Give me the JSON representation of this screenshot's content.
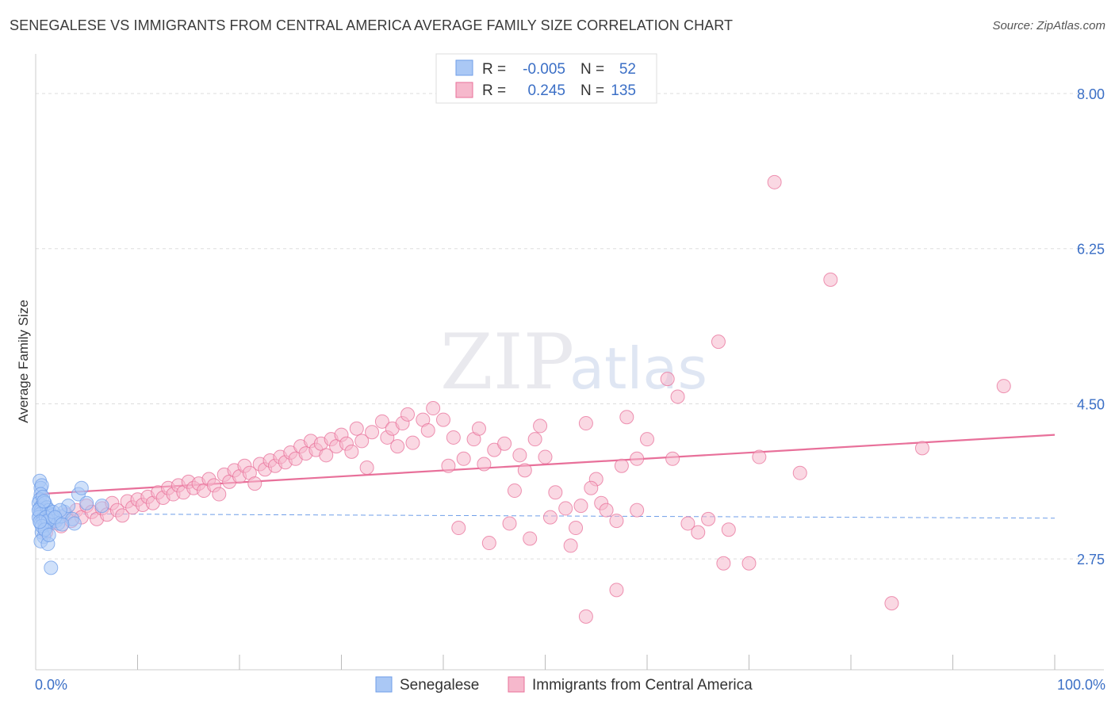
{
  "title": "SENEGALESE VS IMMIGRANTS FROM CENTRAL AMERICA AVERAGE FAMILY SIZE CORRELATION CHART",
  "source": "Source: ZipAtlas.com",
  "watermark": {
    "zip": "ZIP",
    "atlas": "atlas"
  },
  "colors": {
    "blue": "#6f9ee8",
    "blue_fill": "#aac8f5",
    "pink": "#e8709a",
    "pink_fill": "#f6b8cc",
    "axis_label": "#3b6fc6",
    "grid": "#dddddd"
  },
  "legend": {
    "rows": [
      {
        "r_label": "R =",
        "r_value": "-0.005",
        "n_label": "N =",
        "n_value": "52"
      },
      {
        "r_label": "R =",
        "r_value": "0.245",
        "n_label": "N =",
        "n_value": "135"
      }
    ]
  },
  "chart_data": {
    "type": "scatter",
    "title": "SENEGALESE VS IMMIGRANTS FROM CENTRAL AMERICA AVERAGE FAMILY SIZE CORRELATION CHART",
    "xlabel": "",
    "ylabel": "Average Family Size",
    "xlim": [
      0,
      100
    ],
    "ylim": [
      1.5,
      8.25
    ],
    "x_tick_labels": [
      "0.0%",
      "100.0%"
    ],
    "y_ticks": [
      2.75,
      4.5,
      6.25,
      8.0
    ],
    "y_tick_labels": [
      "2.75",
      "4.50",
      "6.25",
      "8.00"
    ],
    "grid": true,
    "legend_position": "top-center",
    "series": [
      {
        "name": "Senegalese",
        "color": "#6f9ee8",
        "trend": {
          "x0": 0,
          "y0": 3.26,
          "x1": 100,
          "y1": 3.21,
          "style": "dashed"
        },
        "points": [
          [
            0.4,
            3.63
          ],
          [
            0.5,
            3.55
          ],
          [
            0.6,
            3.58
          ],
          [
            0.5,
            3.48
          ],
          [
            0.4,
            3.42
          ],
          [
            0.3,
            3.38
          ],
          [
            0.6,
            3.35
          ],
          [
            0.4,
            3.32
          ],
          [
            0.5,
            3.29
          ],
          [
            0.6,
            3.27
          ],
          [
            0.4,
            3.25
          ],
          [
            0.3,
            3.22
          ],
          [
            0.7,
            3.2
          ],
          [
            0.8,
            3.18
          ],
          [
            0.5,
            3.15
          ],
          [
            0.9,
            3.12
          ],
          [
            1.0,
            3.1
          ],
          [
            0.6,
            3.05
          ],
          [
            0.8,
            3.0
          ],
          [
            0.5,
            2.95
          ],
          [
            1.2,
            2.92
          ],
          [
            1.5,
            2.65
          ],
          [
            0.7,
            3.45
          ],
          [
            0.9,
            3.38
          ],
          [
            1.1,
            3.33
          ],
          [
            1.3,
            3.3
          ],
          [
            1.4,
            3.26
          ],
          [
            1.6,
            3.24
          ],
          [
            1.8,
            3.2
          ],
          [
            2.0,
            3.18
          ],
          [
            2.2,
            3.15
          ],
          [
            2.5,
            3.23
          ],
          [
            2.8,
            3.28
          ],
          [
            3.2,
            3.35
          ],
          [
            3.6,
            3.2
          ],
          [
            3.8,
            3.15
          ],
          [
            4.2,
            3.48
          ],
          [
            4.5,
            3.55
          ],
          [
            0.3,
            3.3
          ],
          [
            0.8,
            3.4
          ],
          [
            1.0,
            3.22
          ],
          [
            1.2,
            3.18
          ],
          [
            0.6,
            3.12
          ],
          [
            1.7,
            3.28
          ],
          [
            2.4,
            3.3
          ],
          [
            0.9,
            3.08
          ],
          [
            1.3,
            3.02
          ],
          [
            0.4,
            3.17
          ],
          [
            1.9,
            3.22
          ],
          [
            2.6,
            3.14
          ],
          [
            5.0,
            3.38
          ],
          [
            6.5,
            3.35
          ]
        ]
      },
      {
        "name": "Immigrants from Central America",
        "color": "#e8709a",
        "trend": {
          "x0": 0,
          "y0": 3.48,
          "x1": 100,
          "y1": 4.15,
          "style": "solid"
        },
        "points": [
          [
            1.0,
            3.05
          ],
          [
            1.5,
            3.15
          ],
          [
            2.0,
            3.2
          ],
          [
            2.5,
            3.12
          ],
          [
            3.0,
            3.25
          ],
          [
            3.5,
            3.18
          ],
          [
            4.0,
            3.3
          ],
          [
            4.5,
            3.22
          ],
          [
            5.0,
            3.35
          ],
          [
            5.5,
            3.28
          ],
          [
            6.0,
            3.2
          ],
          [
            6.5,
            3.32
          ],
          [
            7.0,
            3.25
          ],
          [
            7.5,
            3.38
          ],
          [
            8.0,
            3.3
          ],
          [
            8.5,
            3.24
          ],
          [
            9.0,
            3.4
          ],
          [
            9.5,
            3.33
          ],
          [
            10.0,
            3.42
          ],
          [
            10.5,
            3.36
          ],
          [
            11.0,
            3.45
          ],
          [
            11.5,
            3.38
          ],
          [
            12.0,
            3.5
          ],
          [
            12.5,
            3.44
          ],
          [
            13.0,
            3.55
          ],
          [
            13.5,
            3.48
          ],
          [
            14.0,
            3.58
          ],
          [
            14.5,
            3.5
          ],
          [
            15.0,
            3.62
          ],
          [
            15.5,
            3.55
          ],
          [
            16.0,
            3.6
          ],
          [
            16.5,
            3.52
          ],
          [
            17.0,
            3.65
          ],
          [
            17.5,
            3.58
          ],
          [
            18.0,
            3.48
          ],
          [
            18.5,
            3.7
          ],
          [
            19.0,
            3.62
          ],
          [
            19.5,
            3.75
          ],
          [
            20.0,
            3.68
          ],
          [
            20.5,
            3.8
          ],
          [
            21.0,
            3.72
          ],
          [
            21.5,
            3.6
          ],
          [
            22.0,
            3.82
          ],
          [
            22.5,
            3.76
          ],
          [
            23.0,
            3.86
          ],
          [
            23.5,
            3.8
          ],
          [
            24.0,
            3.9
          ],
          [
            24.5,
            3.84
          ],
          [
            25.0,
            3.95
          ],
          [
            25.5,
            3.88
          ],
          [
            26.0,
            4.02
          ],
          [
            26.5,
            3.94
          ],
          [
            27.0,
            4.08
          ],
          [
            27.5,
            3.98
          ],
          [
            28.0,
            4.05
          ],
          [
            28.5,
            3.92
          ],
          [
            29.0,
            4.1
          ],
          [
            29.5,
            4.02
          ],
          [
            30.0,
            4.15
          ],
          [
            30.5,
            4.05
          ],
          [
            31.0,
            3.96
          ],
          [
            31.5,
            4.22
          ],
          [
            32.0,
            4.08
          ],
          [
            32.5,
            3.78
          ],
          [
            33.0,
            4.18
          ],
          [
            34.0,
            4.3
          ],
          [
            34.5,
            4.12
          ],
          [
            35.0,
            4.22
          ],
          [
            35.5,
            4.02
          ],
          [
            36.0,
            4.28
          ],
          [
            36.5,
            4.38
          ],
          [
            37.0,
            4.06
          ],
          [
            38.0,
            4.32
          ],
          [
            38.5,
            4.2
          ],
          [
            39.0,
            4.45
          ],
          [
            40.0,
            4.32
          ],
          [
            40.5,
            3.8
          ],
          [
            41.0,
            4.12
          ],
          [
            42.0,
            3.88
          ],
          [
            43.0,
            4.1
          ],
          [
            43.5,
            4.22
          ],
          [
            44.0,
            3.82
          ],
          [
            45.0,
            3.98
          ],
          [
            46.0,
            4.05
          ],
          [
            47.0,
            3.52
          ],
          [
            47.5,
            3.92
          ],
          [
            48.0,
            3.75
          ],
          [
            49.0,
            4.1
          ],
          [
            49.5,
            4.25
          ],
          [
            50.0,
            3.9
          ],
          [
            51.0,
            3.5
          ],
          [
            52.0,
            3.32
          ],
          [
            53.0,
            3.1
          ],
          [
            54.0,
            4.28
          ],
          [
            55.0,
            3.65
          ],
          [
            55.5,
            3.38
          ],
          [
            56.0,
            3.3
          ],
          [
            57.0,
            3.18
          ],
          [
            57.5,
            3.8
          ],
          [
            58.0,
            4.35
          ],
          [
            59.0,
            3.88
          ],
          [
            60.0,
            4.1
          ],
          [
            62.0,
            4.78
          ],
          [
            63.0,
            4.58
          ],
          [
            64.0,
            3.15
          ],
          [
            65.0,
            3.05
          ],
          [
            66.0,
            3.2
          ],
          [
            67.0,
            5.2
          ],
          [
            67.5,
            2.7
          ],
          [
            70.0,
            2.7
          ],
          [
            71.0,
            3.9
          ],
          [
            75.0,
            3.72
          ],
          [
            78.0,
            5.9
          ],
          [
            84.0,
            2.25
          ],
          [
            87.0,
            4.0
          ],
          [
            95.0,
            4.7
          ],
          [
            72.5,
            7.0
          ],
          [
            57.0,
            2.4
          ],
          [
            54.0,
            2.1
          ],
          [
            50.5,
            3.22
          ],
          [
            59.0,
            3.3
          ],
          [
            62.5,
            3.88
          ],
          [
            68.0,
            3.08
          ],
          [
            54.5,
            3.55
          ],
          [
            53.5,
            3.35
          ],
          [
            46.5,
            3.15
          ],
          [
            48.5,
            2.98
          ],
          [
            41.5,
            3.1
          ],
          [
            44.5,
            2.93
          ],
          [
            52.5,
            2.9
          ]
        ]
      }
    ]
  },
  "bottom_legend": [
    {
      "label": "Senegalese"
    },
    {
      "label": "Immigrants from Central America"
    }
  ]
}
